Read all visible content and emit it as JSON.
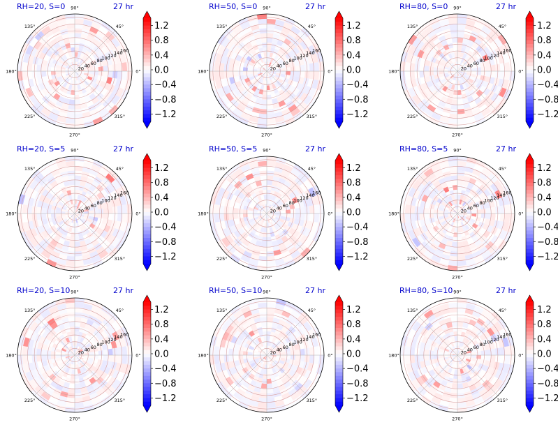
{
  "chart_data": {
    "type": "polar heatmap",
    "layout": {
      "rows": 3,
      "cols": 3
    },
    "time_label": "27 hr",
    "angular_ticks": [
      "0°",
      "45°",
      "90°",
      "135°",
      "180°",
      "225°",
      "270°",
      "315°"
    ],
    "radial_ticks": [
      "20",
      "40",
      "60",
      "80",
      "100",
      "120",
      "140",
      "160"
    ],
    "radial_range": [
      0,
      170
    ],
    "colormap": "bwr",
    "colorbar": {
      "min": -1.4,
      "max": 1.4,
      "ticks": [
        "1.2",
        "0.8",
        "0.4",
        "0.0",
        "−0.4",
        "−0.8",
        "−1.2"
      ],
      "extend": "both",
      "low_color": "#0000ff",
      "mid_color": "#ffffff",
      "high_color": "#ff0000"
    },
    "panels": [
      {
        "title": "RH=20, S=0"
      },
      {
        "title": "RH=50, S=0"
      },
      {
        "title": "RH=80, S=0"
      },
      {
        "title": "RH=20, S=5"
      },
      {
        "title": "RH=50, S=5"
      },
      {
        "title": "RH=80, S=5"
      },
      {
        "title": "RH=20, S=10"
      },
      {
        "title": "RH=50, S=10"
      },
      {
        "title": "RH=80, S=10"
      }
    ]
  }
}
